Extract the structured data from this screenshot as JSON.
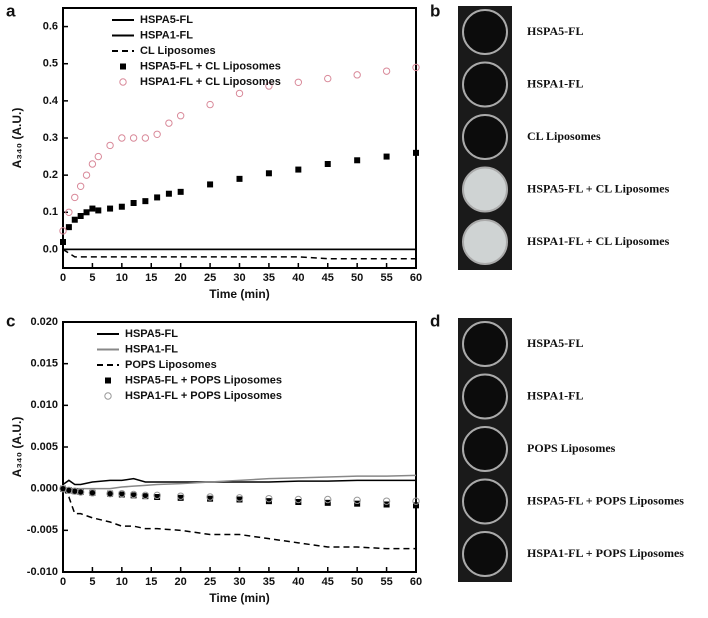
{
  "panel_labels": [
    "a",
    "b",
    "c",
    "d"
  ],
  "images": [
    {
      "labels": [
        "HSPA5-FL",
        "HSPA1-FL",
        "CL Liposomes",
        "HSPA5-FL + CL Liposomes",
        "HSPA1-FL + CL Liposomes"
      ]
    },
    {
      "labels": [
        "HSPA5-FL",
        "HSPA1-FL",
        "POPS Liposomes",
        "HSPA5-FL + POPS Liposomes",
        "HSPA1-FL + POPS Liposomes"
      ]
    }
  ],
  "chart_data": [
    {
      "type": "line",
      "x_label": "Time (min)",
      "y_label": "A₃₄₀ (A.U.)",
      "x": [
        0,
        1,
        2,
        3,
        4,
        5,
        6,
        8,
        10,
        12,
        14,
        16,
        18,
        20,
        25,
        30,
        35,
        40,
        45,
        50,
        55,
        60
      ],
      "xlim": [
        0,
        60
      ],
      "xticks": [
        0,
        5,
        10,
        15,
        20,
        25,
        30,
        35,
        40,
        45,
        50,
        55,
        60
      ],
      "ylim": [
        -0.05,
        0.65
      ],
      "yticks": [
        {
          "value": 0,
          "label": "0.0"
        },
        0.1,
        0.2,
        0.3,
        0.4,
        0.5,
        0.6
      ],
      "series": [
        {
          "name": "HSPA5-FL",
          "color": "#000000",
          "style": "solid",
          "values": [
            0,
            0,
            0,
            0,
            0,
            0,
            0,
            0,
            0,
            0,
            0,
            0,
            0,
            0,
            0,
            0,
            0,
            0,
            0,
            0,
            0,
            0
          ]
        },
        {
          "name": "HSPA1-FL",
          "color": "#000000",
          "style": "solid",
          "values": [
            0,
            0,
            0,
            0,
            0,
            0,
            0,
            0,
            0,
            0,
            0,
            0,
            0,
            0,
            0,
            0,
            0,
            0,
            0,
            0,
            0,
            0
          ]
        },
        {
          "name": "CL Liposomes",
          "color": "#000000",
          "style": "dashed",
          "values": [
            0,
            -0.01,
            -0.02,
            -0.02,
            -0.02,
            -0.02,
            -0.02,
            -0.02,
            -0.02,
            -0.02,
            -0.02,
            -0.02,
            -0.02,
            -0.02,
            -0.02,
            -0.02,
            -0.02,
            -0.02,
            -0.025,
            -0.025,
            -0.025,
            -0.025
          ]
        },
        {
          "name": "HSPA5-FL + CL Liposomes",
          "color": "#000000",
          "style": "square",
          "values": [
            0.02,
            0.06,
            0.08,
            0.09,
            0.1,
            0.11,
            0.105,
            0.11,
            0.115,
            0.125,
            0.13,
            0.14,
            0.15,
            0.155,
            0.175,
            0.19,
            0.205,
            0.215,
            0.23,
            0.24,
            0.25,
            0.26
          ]
        },
        {
          "name": "HSPA1-FL + CL Liposomes",
          "color": "#d98a9a",
          "style": "circle",
          "values": [
            0.05,
            0.1,
            0.14,
            0.17,
            0.2,
            0.23,
            0.25,
            0.28,
            0.3,
            0.3,
            0.3,
            0.31,
            0.34,
            0.36,
            0.39,
            0.42,
            0.44,
            0.45,
            0.46,
            0.47,
            0.48,
            0.49
          ]
        }
      ]
    },
    {
      "type": "line",
      "x_label": "Time (min)",
      "y_label": "A₃₄₀ (A.U.)",
      "x": [
        0,
        1,
        2,
        3,
        5,
        8,
        10,
        12,
        14,
        16,
        20,
        25,
        30,
        35,
        40,
        45,
        50,
        55,
        60
      ],
      "xlim": [
        0,
        60
      ],
      "xticks": [
        0,
        5,
        10,
        15,
        20,
        25,
        30,
        35,
        40,
        45,
        50,
        55,
        60
      ],
      "ylim": [
        -0.01,
        0.02
      ],
      "yticks": [
        {
          "value": -0.01,
          "label": "-0.010"
        },
        -0.005,
        {
          "value": 0,
          "label": "0.000"
        },
        0.005,
        {
          "value": 0.01,
          "label": "0.010"
        },
        0.015,
        {
          "value": 0.02,
          "label": "0.020"
        }
      ],
      "series": [
        {
          "name": "HSPA5-FL",
          "color": "#000000",
          "style": "solid",
          "values": [
            0.0005,
            0.001,
            0.0005,
            0.0005,
            0.0008,
            0.001,
            0.001,
            0.0012,
            0.0008,
            0.0008,
            0.0008,
            0.0008,
            0.0008,
            0.0008,
            0.0009,
            0.0009,
            0.001,
            0.001,
            0.001
          ]
        },
        {
          "name": "HSPA1-FL",
          "color": "#888888",
          "style": "solid",
          "values": [
            0,
            0,
            0,
            0,
            0,
            0,
            0.0002,
            0.0003,
            0.0004,
            0.0005,
            0.0006,
            0.0008,
            0.001,
            0.0012,
            0.0013,
            0.0014,
            0.0015,
            0.0015,
            0.0016
          ]
        },
        {
          "name": "POPS Liposomes",
          "color": "#000000",
          "style": "dashed",
          "values": [
            0,
            -0.001,
            -0.003,
            -0.003,
            -0.0035,
            -0.004,
            -0.0045,
            -0.0045,
            -0.0048,
            -0.0048,
            -0.005,
            -0.0055,
            -0.0055,
            -0.006,
            -0.0065,
            -0.007,
            -0.007,
            -0.0072,
            -0.0072
          ]
        },
        {
          "name": "HSPA5-FL + POPS Liposomes",
          "color": "#000000",
          "style": "square",
          "values": [
            0,
            -0.0002,
            -0.0003,
            -0.0004,
            -0.0005,
            -0.0006,
            -0.0007,
            -0.0008,
            -0.0009,
            -0.001,
            -0.0011,
            -0.0012,
            -0.0013,
            -0.0015,
            -0.0016,
            -0.0017,
            -0.0018,
            -0.0019,
            -0.002
          ]
        },
        {
          "name": "HSPA1-FL + POPS Liposomes",
          "color": "#999999",
          "style": "circle",
          "values": [
            0,
            -0.0002,
            -0.0003,
            -0.0004,
            -0.0005,
            -0.0006,
            -0.0006,
            -0.0007,
            -0.0008,
            -0.0008,
            -0.0009,
            -0.001,
            -0.0011,
            -0.0012,
            -0.0013,
            -0.0013,
            -0.0014,
            -0.0015,
            -0.0015
          ]
        }
      ]
    }
  ]
}
